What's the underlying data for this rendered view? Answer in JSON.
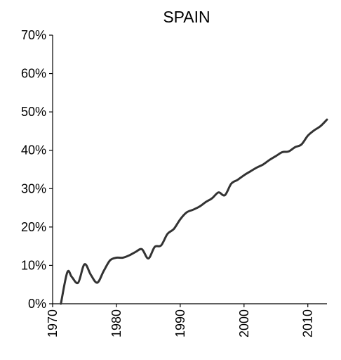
{
  "chart_data": {
    "type": "line",
    "title": "SPAIN",
    "xlabel": "",
    "ylabel": "",
    "xlim": [
      1970,
      2013
    ],
    "ylim": [
      0,
      70
    ],
    "grid": false,
    "legend": "none",
    "line_color": "#333333",
    "x_ticks": [
      1970,
      1980,
      1990,
      2000,
      2010
    ],
    "x_tick_labels": [
      "1970",
      "1980",
      "1990",
      "2000",
      "2010"
    ],
    "y_ticks": [
      0,
      10,
      20,
      30,
      40,
      50,
      60,
      70
    ],
    "y_tick_labels": [
      "0%",
      "10%",
      "20%",
      "30%",
      "40%",
      "50%",
      "60%",
      "70%"
    ],
    "series": [
      {
        "x": [
          1971.3,
          1972.3,
          1973.0,
          1974.0,
          1975.0,
          1976.0,
          1977.0,
          1978.0,
          1979.0,
          1980.0,
          1981.0,
          1982.0,
          1983.0,
          1984.0,
          1985.0,
          1986.0,
          1987.0,
          1988.0,
          1989.0,
          1990.0,
          1991.0,
          1992.0,
          1993.0,
          1994.0,
          1995.0,
          1996.0,
          1997.0,
          1998.0,
          1999.0,
          2000.0,
          2001.0,
          2002.0,
          2003.0,
          2004.0,
          2005.0,
          2006.0,
          2007.0,
          2008.0,
          2009.0,
          2010.0,
          2011.0,
          2012.0,
          2013.0
        ],
        "values": [
          0.0,
          8.2,
          7.0,
          5.5,
          10.3,
          7.5,
          5.5,
          8.5,
          11.3,
          12.0,
          12.0,
          12.6,
          13.5,
          14.2,
          11.8,
          14.8,
          15.2,
          18.2,
          19.5,
          22.0,
          23.8,
          24.5,
          25.3,
          26.5,
          27.5,
          29.0,
          28.3,
          31.3,
          32.3,
          33.5,
          34.5,
          35.5,
          36.3,
          37.5,
          38.5,
          39.5,
          39.7,
          40.8,
          41.5,
          43.8,
          45.2,
          46.3,
          48.0
        ]
      }
    ]
  }
}
